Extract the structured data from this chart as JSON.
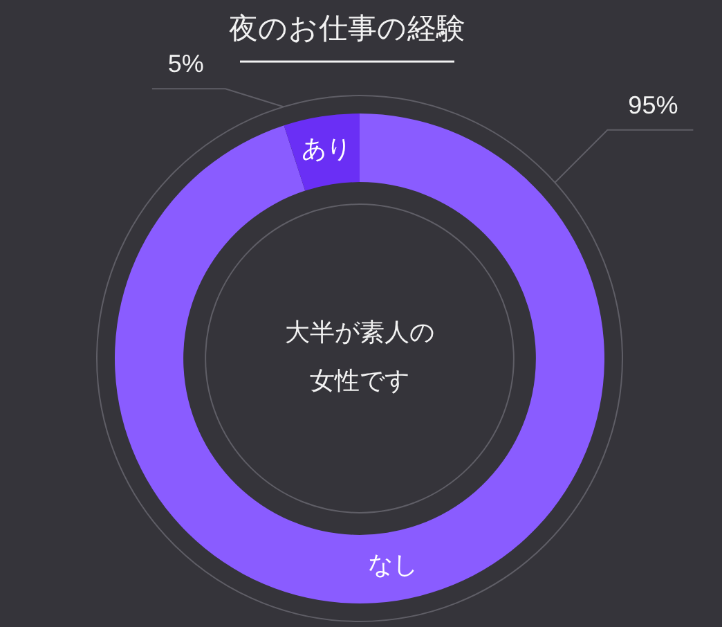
{
  "chart_data": {
    "type": "donut",
    "title": "夜のお仕事の経験",
    "categories": [
      "なし",
      "あり"
    ],
    "values": [
      95,
      5
    ],
    "colors": [
      "#8a5cff",
      "#6a2ff5"
    ],
    "value_labels": [
      "95%",
      "5%"
    ],
    "annotations": [
      "大半が素人の女性です"
    ]
  }
}
